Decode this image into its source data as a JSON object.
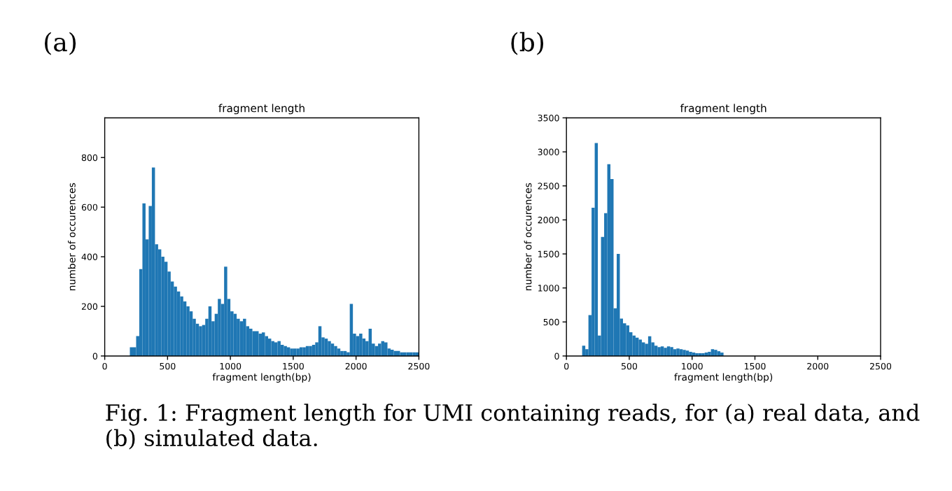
{
  "chart_data": [
    {
      "type": "histogram",
      "title": "fragment length",
      "xlabel": "fragment length(bp)",
      "ylabel": "number of occurences",
      "color": "#1f77b4",
      "annotations": [
        "(a)",
        "Fig. 1: Fragment length for UMI containing reads, for (a) real data, and (b) simulated data."
      ],
      "bins": [
        200,
        250,
        275,
        300,
        325,
        350,
        375,
        400,
        425,
        450,
        475,
        500,
        525,
        550,
        575,
        600,
        625,
        650,
        675,
        700,
        725,
        750,
        775,
        800,
        825,
        850,
        875,
        900,
        925,
        950,
        975,
        1000,
        1025,
        1050,
        1075,
        1100,
        1125,
        1150,
        1175,
        1200,
        1225,
        1250,
        1275,
        1300,
        1325,
        1350,
        1375,
        1400,
        1425,
        1450,
        1475,
        1500,
        1525,
        1550,
        1575,
        1600,
        1625,
        1650,
        1675,
        1700,
        1725,
        1750,
        1775,
        1800,
        1825,
        1850,
        1875,
        1900,
        1925,
        1950,
        1975,
        2000,
        2025,
        2050,
        2075,
        2100,
        2125,
        2150,
        2175,
        2200,
        2225,
        2250,
        2275,
        2300,
        2325,
        2350,
        2375,
        2400,
        2425,
        2450,
        2475,
        2500
      ],
      "values": [
        35,
        80,
        350,
        615,
        470,
        605,
        760,
        450,
        430,
        400,
        380,
        340,
        300,
        280,
        260,
        240,
        220,
        200,
        180,
        150,
        130,
        120,
        125,
        150,
        200,
        140,
        170,
        230,
        210,
        360,
        230,
        180,
        170,
        150,
        140,
        150,
        120,
        110,
        100,
        100,
        90,
        95,
        80,
        70,
        60,
        55,
        60,
        45,
        40,
        35,
        30,
        30,
        30,
        35,
        35,
        40,
        40,
        45,
        55,
        120,
        75,
        70,
        60,
        50,
        40,
        30,
        20,
        20,
        15,
        210,
        90,
        80,
        90,
        70,
        60,
        110,
        50,
        40,
        50,
        60,
        55,
        30,
        25,
        20,
        20,
        15,
        15,
        15,
        15,
        15,
        15
      ],
      "xlim": [
        0,
        2500
      ],
      "xticks": [
        0,
        500,
        1000,
        1500,
        2000,
        2500
      ],
      "ylim": [
        0,
        960
      ],
      "yticks": [
        0,
        200,
        400,
        600,
        800
      ]
    },
    {
      "type": "histogram",
      "title": "fragment length",
      "xlabel": "fragment length(bp)",
      "ylabel": "number of occurences",
      "color": "#1f77b4",
      "annotations": [
        "(b)"
      ],
      "bins": [
        125,
        150,
        175,
        200,
        225,
        250,
        275,
        300,
        325,
        350,
        375,
        400,
        425,
        450,
        475,
        500,
        525,
        550,
        575,
        600,
        625,
        650,
        675,
        700,
        725,
        750,
        775,
        800,
        825,
        850,
        875,
        900,
        925,
        950,
        975,
        1000,
        1025,
        1050,
        1075,
        1100,
        1125,
        1150,
        1175,
        1200,
        1225,
        1250
      ],
      "values": [
        150,
        100,
        600,
        2180,
        3130,
        300,
        1750,
        2100,
        2820,
        2600,
        700,
        1500,
        550,
        480,
        450,
        350,
        300,
        270,
        240,
        200,
        180,
        290,
        200,
        150,
        130,
        140,
        120,
        140,
        130,
        100,
        110,
        100,
        90,
        80,
        60,
        50,
        40,
        40,
        40,
        50,
        60,
        100,
        90,
        70,
        50
      ],
      "xlim": [
        0,
        2500
      ],
      "xticks": [
        0,
        500,
        1000,
        1500,
        2000,
        2500
      ],
      "ylim": [
        0,
        3500
      ],
      "yticks": [
        0,
        500,
        1000,
        1500,
        2000,
        2500,
        3000,
        3500
      ]
    }
  ]
}
